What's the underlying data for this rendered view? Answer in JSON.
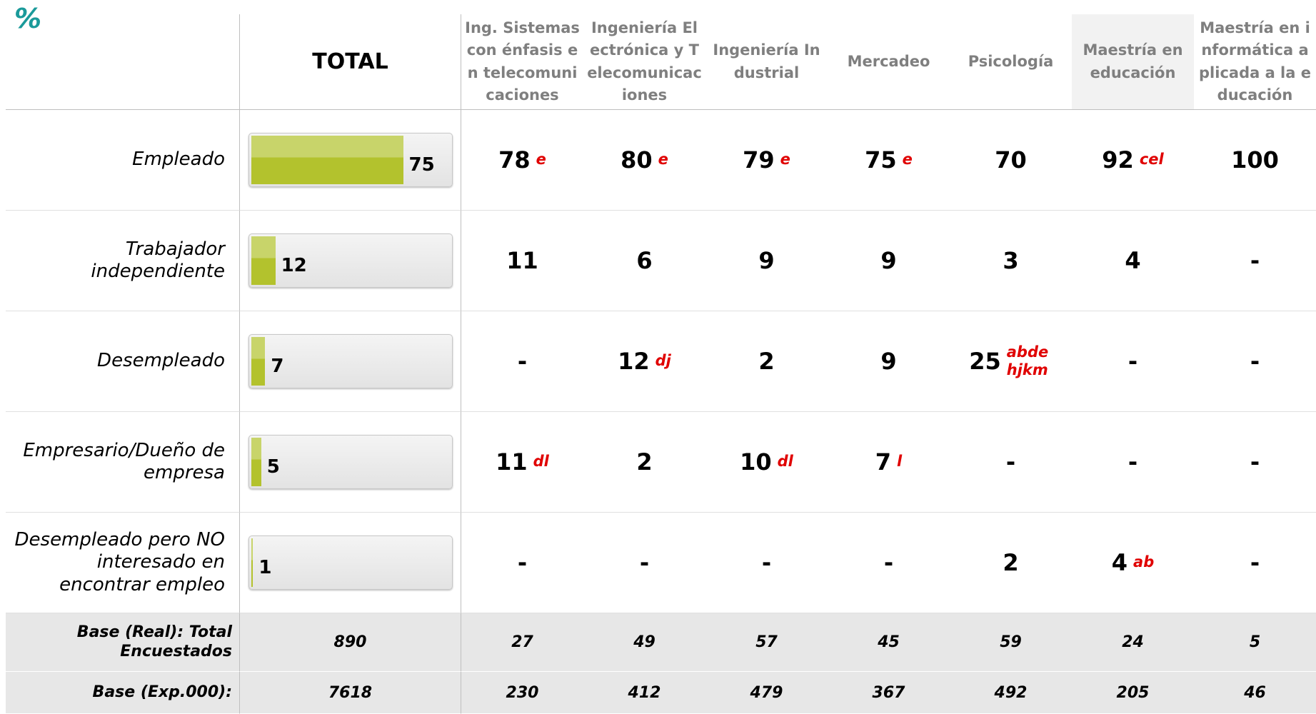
{
  "corner_label": "%",
  "header": {
    "total": "TOTAL",
    "columns": [
      "Ing. Sistemas con énfasis en telecomunicaciones",
      "Ingeniería Electrónica y Telecomunicaciones",
      "Ingeniería Industrial",
      "Mercadeo",
      "Psicología",
      "Maestría en educación",
      "Maestría en informática aplicada a la educación"
    ]
  },
  "rows": [
    {
      "label": "Empleado",
      "total": 75,
      "cells": [
        {
          "value": 78,
          "sig": "e"
        },
        {
          "value": 80,
          "sig": "e"
        },
        {
          "value": 79,
          "sig": "e"
        },
        {
          "value": 75,
          "sig": "e"
        },
        {
          "value": 70
        },
        {
          "value": 92,
          "sig": "cel"
        },
        {
          "value": 100
        }
      ]
    },
    {
      "label": "Trabajador independiente",
      "total": 12,
      "cells": [
        {
          "value": 11
        },
        {
          "value": 6
        },
        {
          "value": 9
        },
        {
          "value": 9
        },
        {
          "value": 3
        },
        {
          "value": 4
        },
        {
          "value": "-"
        }
      ]
    },
    {
      "label": "Desempleado",
      "total": 7,
      "cells": [
        {
          "value": "-"
        },
        {
          "value": 12,
          "sig": "dj"
        },
        {
          "value": 2
        },
        {
          "value": 9
        },
        {
          "value": 25,
          "sig": "abde hjkm"
        },
        {
          "value": "-"
        },
        {
          "value": "-"
        }
      ]
    },
    {
      "label": "Empresario/Dueño de empresa",
      "total": 5,
      "cells": [
        {
          "value": 11,
          "sig": "dl"
        },
        {
          "value": 2
        },
        {
          "value": 10,
          "sig": "dl"
        },
        {
          "value": 7,
          "sig": "l"
        },
        {
          "value": "-"
        },
        {
          "value": "-"
        },
        {
          "value": "-"
        }
      ]
    },
    {
      "label": "Desempleado pero NO interesado en encontrar empleo",
      "total": 1,
      "cells": [
        {
          "value": "-"
        },
        {
          "value": "-"
        },
        {
          "value": "-"
        },
        {
          "value": "-"
        },
        {
          "value": 2
        },
        {
          "value": 4,
          "sig": "ab"
        },
        {
          "value": "-"
        }
      ]
    }
  ],
  "bases": [
    {
      "label": "Base (Real): Total Encuestados",
      "total": 890,
      "values": [
        27,
        49,
        57,
        45,
        59,
        24,
        5
      ]
    },
    {
      "label": "Base (Exp.000):",
      "total": 7618,
      "values": [
        230,
        412,
        479,
        367,
        492,
        205,
        46
      ]
    }
  ]
}
